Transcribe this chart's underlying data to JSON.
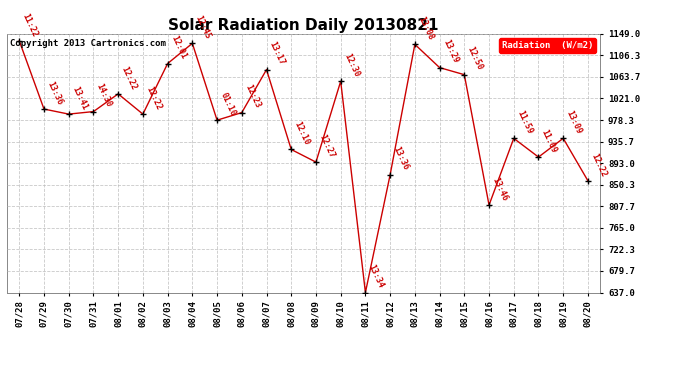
{
  "title": "Solar Radiation Daily 20130821",
  "copyright": "Copyright 2013 Cartronics.com",
  "legend_label": "Radiation  (W/m2)",
  "dates": [
    "07/28",
    "07/29",
    "07/30",
    "07/31",
    "08/01",
    "08/02",
    "08/03",
    "08/04",
    "08/05",
    "08/06",
    "08/07",
    "08/08",
    "08/09",
    "08/10",
    "08/11",
    "08/12",
    "08/13",
    "08/14",
    "08/15",
    "08/16",
    "08/17",
    "08/18",
    "08/19",
    "08/20"
  ],
  "values": [
    1135,
    1000,
    990,
    995,
    1030,
    990,
    1090,
    1130,
    978,
    993,
    1078,
    920,
    895,
    1055,
    637,
    870,
    1128,
    1082,
    1068,
    810,
    942,
    905,
    942,
    858
  ],
  "time_labels": [
    "11:22",
    "13:36",
    "13:41",
    "14:30",
    "12:22",
    "12:22",
    "12:01",
    "12:45",
    "01:10",
    "12:23",
    "13:17",
    "12:10",
    "12:27",
    "12:30",
    "13:34",
    "13:36",
    "13:08",
    "13:29",
    "12:50",
    "13:46",
    "11:59",
    "11:09",
    "13:09",
    "12:22"
  ],
  "ylim": [
    637.0,
    1149.0
  ],
  "yticks": [
    637.0,
    679.7,
    722.3,
    765.0,
    807.7,
    850.3,
    893.0,
    935.7,
    978.3,
    1021.0,
    1063.7,
    1106.3,
    1149.0
  ],
  "line_color": "#cc0000",
  "marker_color": "#000000",
  "label_color": "#cc0000",
  "grid_color": "#bbbbbb",
  "background_color": "#ffffff",
  "title_fontsize": 11,
  "copyright_fontsize": 6.5,
  "label_fontsize": 6,
  "tick_fontsize": 6.5
}
